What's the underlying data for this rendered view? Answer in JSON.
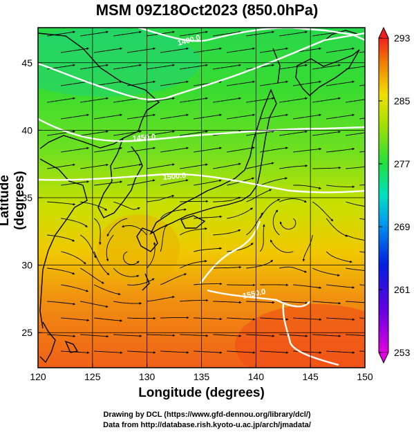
{
  "title": "MSM 09Z18Oct2023 (850.0hPa)",
  "axes": {
    "xlabel": "Longitude (degrees)",
    "ylabel": "Latitude  (degrees)",
    "xlim": [
      120,
      150
    ],
    "ylim": [
      22.4,
      47.6
    ],
    "xticks": [
      120,
      125,
      130,
      135,
      140,
      145,
      150
    ],
    "yticks": [
      25,
      30,
      35,
      40,
      45
    ]
  },
  "colorbar": {
    "min": 253,
    "max": 293,
    "ticks": [
      253,
      261,
      269,
      277,
      285,
      293
    ]
  },
  "contours": {
    "labels": [
      "1400.0",
      "1450.0",
      "1500.0",
      "1550.0"
    ]
  },
  "credits": {
    "line1": "Drawing by DCL (https://www.gfd-dennou.org/library/dcl/)",
    "line2": "Data from http://database.rish.kyoto-u.ac.jp/arch/jmadata/"
  },
  "colors": {
    "cold": "#d000d0",
    "cool": "#1830e0",
    "mild": "#00d8c8",
    "green": "#30d838",
    "yellow": "#e8d800",
    "orange": "#f08000",
    "hot": "#f03020"
  }
}
